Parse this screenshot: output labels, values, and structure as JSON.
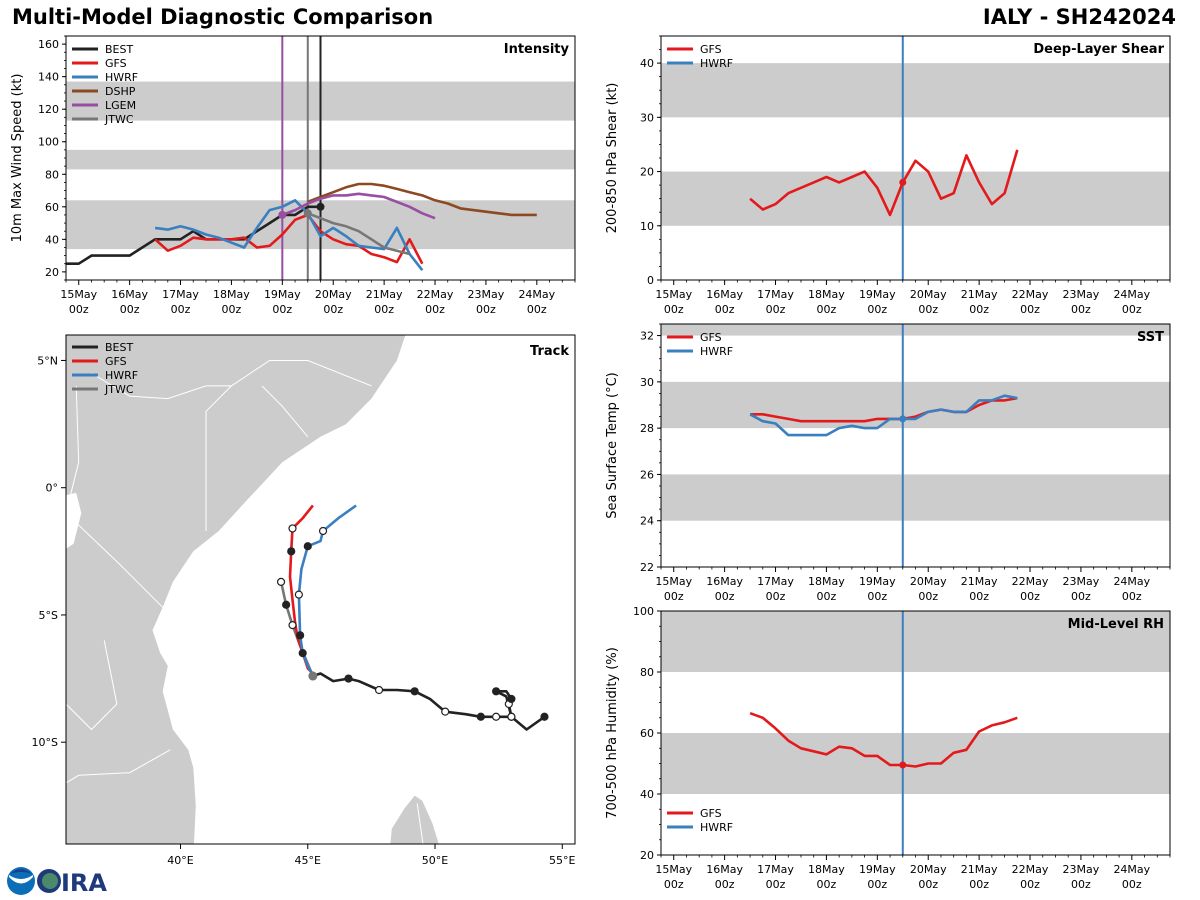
{
  "header": {
    "title": "Multi-Model Diagnostic Comparison",
    "storm_id": "IALY - SH242024"
  },
  "colors": {
    "BEST": "#222222",
    "GFS": "#e31a1c",
    "HWRF": "#3a7fbf",
    "DSHP": "#8c4a22",
    "LGEM": "#984ea3",
    "JTWC": "#777777",
    "band": "#cccccc",
    "land": "#cccccc"
  },
  "time_ticks": {
    "day_labels": [
      "15May",
      "16May",
      "17May",
      "18May",
      "19May",
      "20May",
      "21May",
      "22May",
      "23May",
      "24May"
    ],
    "hour_label": "00z"
  },
  "chart_data": [
    {
      "id": "intensity",
      "type": "line",
      "panel_label": "Intensity",
      "ylabel": "10m Max Wind Speed (kt)",
      "ylim": [
        15,
        165
      ],
      "yticks": [
        20,
        40,
        60,
        80,
        100,
        120,
        140,
        160
      ],
      "xlim_days": [
        -0.25,
        9.75
      ],
      "bands": [
        [
          34,
          64
        ],
        [
          83,
          95
        ],
        [
          113,
          137
        ]
      ],
      "legend": [
        "BEST",
        "GFS",
        "HWRF",
        "DSHP",
        "LGEM",
        "JTWC"
      ],
      "legend_position": "top-left",
      "vlines": [
        {
          "series": "LGEM",
          "day": 4.0
        },
        {
          "series": "JTWC",
          "day": 4.5
        },
        {
          "series": "BEST",
          "day": 4.75
        }
      ],
      "series": [
        {
          "name": "BEST",
          "days": [
            -0.25,
            0,
            0.25,
            0.5,
            0.75,
            1,
            1.25,
            1.5,
            1.75,
            2,
            2.25,
            2.5,
            2.75,
            3,
            3.25,
            3.5,
            3.75,
            4,
            4.25,
            4.5,
            4.75
          ],
          "values": [
            25,
            25,
            30,
            30,
            30,
            30,
            35,
            40,
            40,
            40,
            45,
            40,
            40,
            40,
            40,
            45,
            50,
            55,
            55,
            60,
            60
          ]
        },
        {
          "name": "GFS",
          "days": [
            1.5,
            1.75,
            2,
            2.25,
            2.5,
            2.75,
            3,
            3.25,
            3.5,
            3.75,
            4,
            4.25,
            4.5,
            4.75,
            5,
            5.25,
            5.5,
            5.75,
            6,
            6.25,
            6.5,
            6.75
          ],
          "values": [
            40,
            33,
            36,
            41,
            40,
            40,
            40,
            41,
            35,
            36,
            43,
            52,
            55,
            45,
            40,
            37,
            36,
            31,
            29,
            26,
            40,
            25
          ]
        },
        {
          "name": "HWRF",
          "days": [
            1.5,
            1.75,
            2,
            2.25,
            2.5,
            2.75,
            3,
            3.25,
            3.5,
            3.75,
            4,
            4.25,
            4.5,
            4.75,
            5,
            5.25,
            5.5,
            5.75,
            6,
            6.25,
            6.5,
            6.75
          ],
          "values": [
            47,
            46,
            48,
            46,
            43,
            41,
            38,
            35,
            47,
            58,
            60,
            64,
            56,
            42,
            47,
            42,
            36,
            35,
            34,
            47,
            31,
            21
          ]
        },
        {
          "name": "DSHP",
          "days": [
            4.5,
            4.75,
            5,
            5.25,
            5.5,
            5.75,
            6,
            6.25,
            6.5,
            6.75,
            7,
            7.25,
            7.5,
            7.75,
            8,
            8.25,
            8.5,
            8.75,
            9
          ],
          "values": [
            63,
            66,
            69,
            72,
            74,
            74,
            73,
            71,
            69,
            67,
            64,
            62,
            59,
            58,
            57,
            56,
            55,
            55,
            55
          ]
        },
        {
          "name": "LGEM",
          "days": [
            4,
            4.25,
            4.5,
            4.75,
            5,
            5.25,
            5.5,
            5.75,
            6,
            6.25,
            6.5,
            6.75,
            7
          ],
          "values": [
            55,
            58,
            62,
            65,
            67,
            67,
            68,
            67,
            66,
            63,
            60,
            56,
            53
          ]
        },
        {
          "name": "JTWC",
          "days": [
            4.5,
            4.75,
            5,
            5.25,
            5.5,
            5.75,
            6,
            6.25,
            6.5
          ],
          "values": [
            56,
            53,
            50,
            48,
            45,
            40,
            35,
            33,
            31
          ]
        }
      ]
    },
    {
      "id": "shear",
      "type": "line",
      "panel_label": "Deep-Layer Shear",
      "ylabel": "200-850 hPa Shear (kt)",
      "ylim": [
        0,
        45
      ],
      "yticks": [
        0,
        10,
        20,
        30,
        40
      ],
      "xlim_days": [
        -0.25,
        9.75
      ],
      "bands": [
        [
          10,
          20
        ],
        [
          30,
          40
        ]
      ],
      "legend": [
        "GFS",
        "HWRF"
      ],
      "legend_position": "top-left",
      "vlines": [
        {
          "series": "HWRF",
          "day": 4.5
        }
      ],
      "series": [
        {
          "name": "GFS",
          "days": [
            1.5,
            1.75,
            2,
            2.25,
            2.5,
            2.75,
            3,
            3.25,
            3.5,
            3.75,
            4,
            4.25,
            4.5,
            4.75,
            5,
            5.25,
            5.5,
            5.75,
            6,
            6.25,
            6.5,
            6.75
          ],
          "values": [
            15,
            13,
            14,
            16,
            17,
            18,
            19,
            18,
            19,
            20,
            17,
            12,
            18,
            22,
            20,
            15,
            16,
            23,
            18,
            14,
            16,
            24
          ]
        },
        {
          "name": "HWRF",
          "days": [],
          "values": []
        }
      ]
    },
    {
      "id": "sst",
      "type": "line",
      "panel_label": "SST",
      "ylabel": "Sea Surface Temp (°C)",
      "ylim": [
        22,
        32.5
      ],
      "yticks": [
        22,
        24,
        26,
        28,
        30,
        32
      ],
      "xlim_days": [
        -0.25,
        9.75
      ],
      "bands": [
        [
          24,
          26
        ],
        [
          28,
          30
        ],
        [
          32,
          34
        ]
      ],
      "legend": [
        "GFS",
        "HWRF"
      ],
      "legend_position": "top-left",
      "vlines": [
        {
          "series": "HWRF",
          "day": 4.5
        }
      ],
      "series": [
        {
          "name": "GFS",
          "days": [
            1.5,
            1.75,
            2,
            2.25,
            2.5,
            2.75,
            3,
            3.25,
            3.5,
            3.75,
            4,
            4.25,
            4.5,
            4.75,
            5,
            5.25,
            5.5,
            5.75,
            6,
            6.25,
            6.5,
            6.75
          ],
          "values": [
            28.6,
            28.6,
            28.5,
            28.4,
            28.3,
            28.3,
            28.3,
            28.3,
            28.3,
            28.3,
            28.4,
            28.4,
            28.4,
            28.5,
            28.7,
            28.8,
            28.7,
            28.7,
            29.0,
            29.2,
            29.2,
            29.3
          ]
        },
        {
          "name": "HWRF",
          "days": [
            1.5,
            1.75,
            2,
            2.25,
            2.5,
            2.75,
            3,
            3.25,
            3.5,
            3.75,
            4,
            4.25,
            4.5,
            4.75,
            5,
            5.25,
            5.5,
            5.75,
            6,
            6.25,
            6.5,
            6.75
          ],
          "values": [
            28.6,
            28.3,
            28.2,
            27.7,
            27.7,
            27.7,
            27.7,
            28.0,
            28.1,
            28.0,
            28.0,
            28.4,
            28.4,
            28.4,
            28.7,
            28.8,
            28.7,
            28.7,
            29.2,
            29.2,
            29.4,
            29.3
          ]
        }
      ]
    },
    {
      "id": "rh",
      "type": "line",
      "panel_label": "Mid-Level RH",
      "ylabel": "700-500 hPa Humidity (%)",
      "ylim": [
        20,
        100
      ],
      "yticks": [
        20,
        40,
        60,
        80,
        100
      ],
      "xlim_days": [
        -0.25,
        9.75
      ],
      "bands": [
        [
          40,
          60
        ],
        [
          80,
          100
        ]
      ],
      "legend": [
        "GFS",
        "HWRF"
      ],
      "legend_position": "bottom-left",
      "vlines": [
        {
          "series": "HWRF",
          "day": 4.5
        }
      ],
      "series": [
        {
          "name": "GFS",
          "days": [
            1.5,
            1.75,
            2,
            2.25,
            2.5,
            2.75,
            3,
            3.25,
            3.5,
            3.75,
            4,
            4.25,
            4.5,
            4.75,
            5,
            5.25,
            5.5,
            5.75,
            6,
            6.25,
            6.5,
            6.75
          ],
          "values": [
            66.5,
            65,
            61.5,
            57.5,
            55,
            54,
            53,
            55.5,
            55,
            52.5,
            52.5,
            49.5,
            49.5,
            49,
            50,
            50,
            53.5,
            54.5,
            60.5,
            62.5,
            63.5,
            65
          ]
        },
        {
          "name": "HWRF",
          "days": [],
          "values": []
        }
      ]
    },
    {
      "id": "track",
      "type": "scatter",
      "panel_label": "Track",
      "xlim_lon": [
        35.5,
        55.5
      ],
      "ylim_lat": [
        -14,
        6
      ],
      "xticks": [
        "40°E",
        "45°E",
        "50°E",
        "55°E"
      ],
      "xtick_values": [
        40,
        45,
        50,
        55
      ],
      "yticks": [
        "5°N",
        "0°",
        "5°S",
        "10°S"
      ],
      "ytick_values": [
        5,
        0,
        -5,
        -10
      ],
      "legend": [
        "BEST",
        "GFS",
        "HWRF",
        "JTWC"
      ],
      "legend_position": "top-left",
      "series": [
        {
          "name": "BEST",
          "lon": [
            54.3,
            53.6,
            53.0,
            52.9,
            53.0,
            52.8,
            52.4,
            52.8,
            53.0,
            52.4,
            51.8,
            51.2,
            50.4,
            49.8,
            49.2,
            48.5,
            47.8,
            47.0,
            46.6,
            46.0,
            45.5,
            45.2
          ],
          "lat": [
            -9.0,
            -9.5,
            -9.0,
            -8.5,
            -8.3,
            -8.0,
            -8.0,
            -8.2,
            -9.0,
            -9.0,
            -9.0,
            -8.9,
            -8.8,
            -8.3,
            -8.0,
            -7.95,
            -7.95,
            -7.6,
            -7.5,
            -7.6,
            -7.3,
            -7.4
          ],
          "markers": [
            "filled",
            "none",
            "open",
            "open",
            "filled",
            "none",
            "filled",
            "none",
            "open",
            "open",
            "filled",
            "none",
            "open",
            "none",
            "filled",
            "none",
            "open",
            "none",
            "filled",
            "none",
            "none",
            "open"
          ]
        },
        {
          "name": "GFS",
          "lon": [
            45.3,
            45.0,
            44.8,
            44.6,
            44.5,
            44.4,
            44.3,
            44.35,
            44.4,
            44.8,
            45.2
          ],
          "lat": [
            -7.4,
            -7.1,
            -6.5,
            -5.9,
            -5.3,
            -4.4,
            -3.5,
            -2.5,
            -1.6,
            -1.2,
            -0.7
          ],
          "markers": [
            "none",
            "none",
            "filled",
            "none",
            "none",
            "none",
            "none",
            "filled",
            "open",
            "none",
            "none"
          ]
        },
        {
          "name": "HWRF",
          "lon": [
            45.2,
            45.0,
            44.8,
            44.7,
            44.65,
            44.75,
            45.0,
            45.5,
            45.6,
            46.2,
            46.9
          ],
          "lat": [
            -7.4,
            -7.0,
            -6.5,
            -5.8,
            -4.2,
            -3.2,
            -2.3,
            -2.1,
            -1.7,
            -1.2,
            -0.7
          ],
          "markers": [
            "none",
            "none",
            "none",
            "filled",
            "open",
            "none",
            "filled",
            "none",
            "open",
            "none",
            "none"
          ]
        },
        {
          "name": "JTWC",
          "lon": [
            45.2,
            44.7,
            44.4,
            44.15,
            43.95
          ],
          "lat": [
            -7.4,
            -6.2,
            -5.4,
            -4.6,
            -3.7
          ],
          "markers": [
            "filled",
            "none",
            "open",
            "filled",
            "open"
          ]
        }
      ]
    }
  ]
}
